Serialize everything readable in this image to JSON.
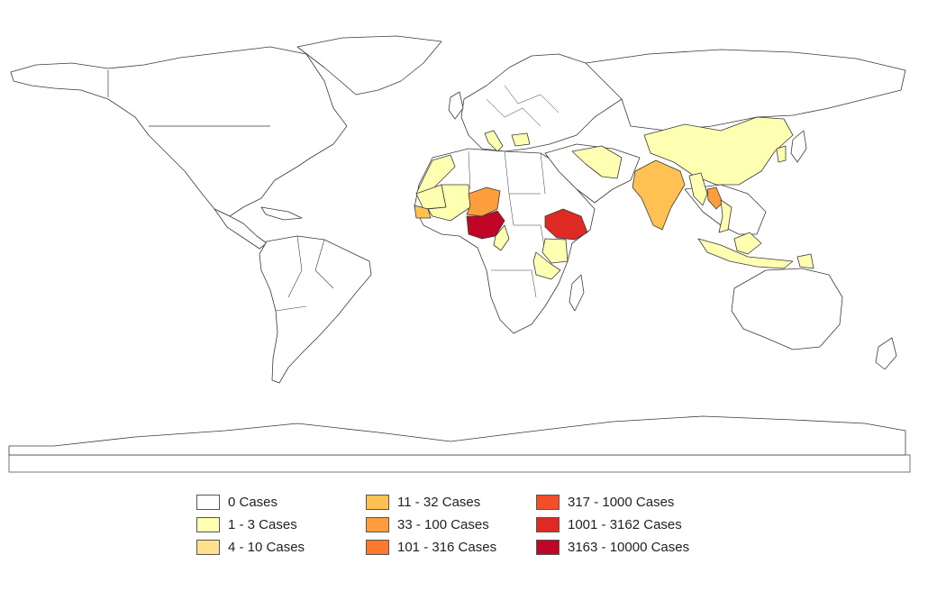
{
  "map": {
    "type": "choropleth",
    "projection": "equirectangular",
    "map_frame_bottom_border": true
  },
  "legend": {
    "items": [
      {
        "label": "0 Cases",
        "color": "#ffffff"
      },
      {
        "label": "1 - 3 Cases",
        "color": "#ffffb2"
      },
      {
        "label": "4 - 10 Cases",
        "color": "#fee18a"
      },
      {
        "label": "11 - 32 Cases",
        "color": "#fec152"
      },
      {
        "label": "33 - 100 Cases",
        "color": "#fd9d3c"
      },
      {
        "label": "101 - 316 Cases",
        "color": "#fc7a2d"
      },
      {
        "label": "317 - 1000 Cases",
        "color": "#f24f28"
      },
      {
        "label": "1001 - 3162 Cases",
        "color": "#de2a22"
      },
      {
        "label": "3163 - 10000 Cases",
        "color": "#c10526"
      }
    ]
  },
  "regions": [
    {
      "name": "Nigeria",
      "color": "#c10526"
    },
    {
      "name": "Ethiopia",
      "color": "#de2a22"
    },
    {
      "name": "Niger",
      "color": "#fd9d3c"
    },
    {
      "name": "Laos",
      "color": "#fd9d3c"
    },
    {
      "name": "India",
      "color": "#fec152"
    },
    {
      "name": "Senegal",
      "color": "#fec152"
    },
    {
      "name": "Mali",
      "color": "#ffffb2"
    },
    {
      "name": "Mauritania",
      "color": "#ffffb2"
    },
    {
      "name": "Morocco",
      "color": "#ffffb2"
    },
    {
      "name": "Chad",
      "color": "#ffffff"
    },
    {
      "name": "Cameroon",
      "color": "#ffffb2"
    },
    {
      "name": "Kenya",
      "color": "#ffffb2"
    },
    {
      "name": "Tanzania",
      "color": "#ffffb2"
    },
    {
      "name": "China",
      "color": "#ffffb2"
    },
    {
      "name": "Afghanistan/Pakistan",
      "color": "#ffffb2"
    },
    {
      "name": "Myanmar",
      "color": "#ffffb2"
    },
    {
      "name": "Vietnam",
      "color": "#ffffb2"
    },
    {
      "name": "Indonesia",
      "color": "#ffffb2"
    },
    {
      "name": "Philippines",
      "color": "#ffffb2"
    },
    {
      "name": "Italy",
      "color": "#ffffb2"
    },
    {
      "name": "Balkans",
      "color": "#ffffb2"
    },
    {
      "name": "Papua New Guinea",
      "color": "#ffffb2"
    },
    {
      "name": "Korea",
      "color": "#ffffb2"
    }
  ]
}
